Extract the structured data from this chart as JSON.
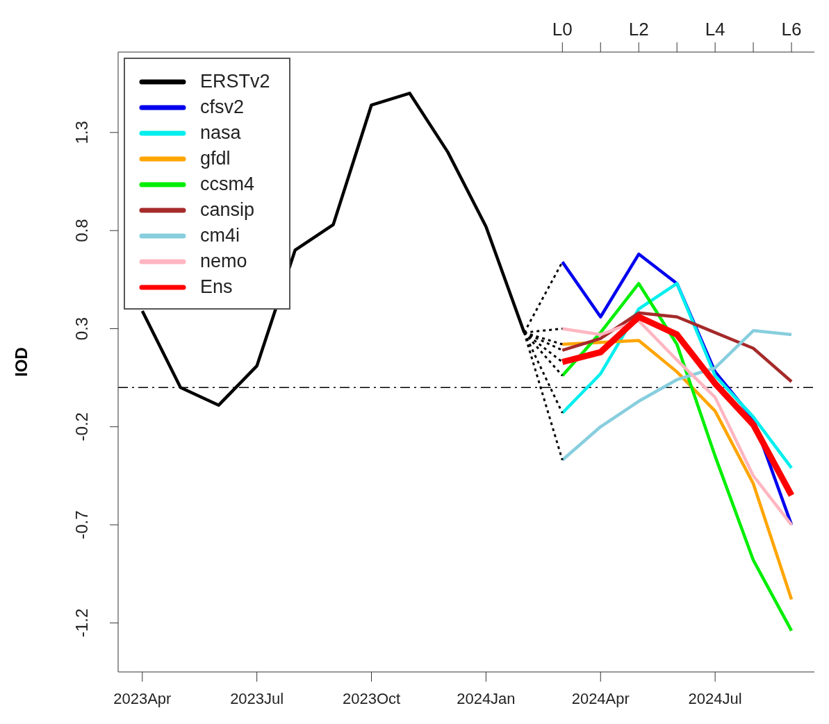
{
  "chart_data": {
    "type": "line",
    "ylabel": "IOD",
    "xlim": [
      "2023-03-12",
      "2024-09-19"
    ],
    "xticks": [
      {
        "value": "2023-04",
        "label": "2023Apr"
      },
      {
        "value": "2023-07",
        "label": "2023Jul"
      },
      {
        "value": "2023-10",
        "label": "2023Oct"
      },
      {
        "value": "2024-01",
        "label": "2024Jan"
      },
      {
        "value": "2024-04",
        "label": "2024Apr"
      },
      {
        "value": "2024-07",
        "label": "2024Jul"
      }
    ],
    "annotations": [
      {
        "text": "L0",
        "x": "2024-03"
      },
      {
        "text": "L2",
        "x": "2024-05"
      },
      {
        "text": "L4",
        "x": "2024-07"
      },
      {
        "text": "L6",
        "x": "2024-09"
      }
    ],
    "ylim": [
      -1.45,
      1.71
    ],
    "yticks": [
      -1.2,
      -0.7,
      -0.2,
      0.3,
      0.8,
      1.3
    ],
    "grid": false,
    "legend": "top left",
    "line_style": "solid",
    "ref_lines": [
      {
        "axis": "y",
        "value": 0,
        "color": "#000000",
        "line_style": "dashed"
      }
    ],
    "series": [
      {
        "name": "ERSTv2",
        "color": "#000000",
        "x": [
          "2023-04",
          "2023-05",
          "2023-06",
          "2023-07",
          "2023-08",
          "2023-09",
          "2023-10",
          "2023-11",
          "2023-12",
          "2024-01",
          "2024-02"
        ],
        "values": [
          0.39,
          0.0,
          -0.09,
          0.11,
          0.7,
          0.83,
          1.44,
          1.5,
          1.2,
          0.82,
          0.28
        ]
      },
      {
        "name": "cfsv2",
        "color": "#0000ee",
        "x": [
          "2024-03",
          "2024-04",
          "2024-05",
          "2024-06",
          "2024-07",
          "2024-08",
          "2024-09"
        ],
        "values": [
          0.64,
          0.36,
          0.68,
          0.53,
          0.08,
          -0.16,
          -0.7
        ]
      },
      {
        "name": "nasa",
        "color": "#00eeee",
        "x": [
          "2024-03",
          "2024-04",
          "2024-05",
          "2024-06",
          "2024-07",
          "2024-08",
          "2024-09"
        ],
        "values": [
          -0.13,
          0.07,
          0.4,
          0.53,
          0.06,
          -0.15,
          -0.41
        ]
      },
      {
        "name": "gfdl",
        "color": "#ffa500",
        "x": [
          "2024-03",
          "2024-04",
          "2024-05",
          "2024-06",
          "2024-07",
          "2024-08",
          "2024-09"
        ],
        "values": [
          0.22,
          0.23,
          0.24,
          0.08,
          -0.12,
          -0.49,
          -1.08
        ]
      },
      {
        "name": "ccsm4",
        "color": "#00ee00",
        "x": [
          "2024-03",
          "2024-04",
          "2024-05",
          "2024-06",
          "2024-07",
          "2024-08",
          "2024-09"
        ],
        "values": [
          0.06,
          0.28,
          0.53,
          0.22,
          -0.35,
          -0.88,
          -1.24
        ]
      },
      {
        "name": "cansip",
        "color": "#a52a2a",
        "x": [
          "2024-03",
          "2024-04",
          "2024-05",
          "2024-06",
          "2024-07",
          "2024-08",
          "2024-09"
        ],
        "values": [
          0.19,
          0.25,
          0.38,
          0.36,
          0.28,
          0.2,
          0.03
        ]
      },
      {
        "name": "cm4i",
        "color": "#87cede",
        "x": [
          "2024-03",
          "2024-04",
          "2024-05",
          "2024-06",
          "2024-07",
          "2024-08",
          "2024-09"
        ],
        "values": [
          -0.37,
          -0.2,
          -0.07,
          0.04,
          0.1,
          0.29,
          0.27
        ]
      },
      {
        "name": "nemo",
        "color": "#ffb6c1",
        "x": [
          "2024-03",
          "2024-04",
          "2024-05",
          "2024-06",
          "2024-07",
          "2024-08",
          "2024-09"
        ],
        "values": [
          0.3,
          0.27,
          0.34,
          0.14,
          -0.05,
          -0.45,
          -0.7
        ]
      },
      {
        "name": "Ens",
        "color": "#ff0000",
        "x": [
          "2024-03",
          "2024-04",
          "2024-05",
          "2024-06",
          "2024-07",
          "2024-08",
          "2024-09"
        ],
        "values": [
          0.13,
          0.18,
          0.36,
          0.27,
          0.02,
          -0.19,
          -0.55
        ]
      },
      {
        "color": "#000000",
        "line_style": "dotted",
        "x": [
          "2024-02",
          "2024-03"
        ],
        "values": [
          0.28,
          0.64
        ]
      },
      {
        "color": "#000000",
        "line_style": "dotted",
        "x": [
          "2024-02",
          "2024-03"
        ],
        "values": [
          0.28,
          -0.13
        ]
      },
      {
        "color": "#000000",
        "line_style": "dotted",
        "x": [
          "2024-02",
          "2024-03"
        ],
        "values": [
          0.28,
          0.22
        ]
      },
      {
        "color": "#000000",
        "line_style": "dotted",
        "x": [
          "2024-02",
          "2024-03"
        ],
        "values": [
          0.28,
          0.06
        ]
      },
      {
        "color": "#000000",
        "line_style": "dotted",
        "x": [
          "2024-02",
          "2024-03"
        ],
        "values": [
          0.28,
          0.19
        ]
      },
      {
        "color": "#000000",
        "line_style": "dotted",
        "x": [
          "2024-02",
          "2024-03"
        ],
        "values": [
          0.28,
          -0.37
        ]
      },
      {
        "color": "#000000",
        "line_style": "dotted",
        "x": [
          "2024-02",
          "2024-03"
        ],
        "values": [
          0.28,
          0.3
        ]
      },
      {
        "color": "#000000",
        "line_style": "dotted",
        "x": [
          "2024-02",
          "2024-03"
        ],
        "values": [
          0.28,
          0.13
        ]
      }
    ]
  }
}
